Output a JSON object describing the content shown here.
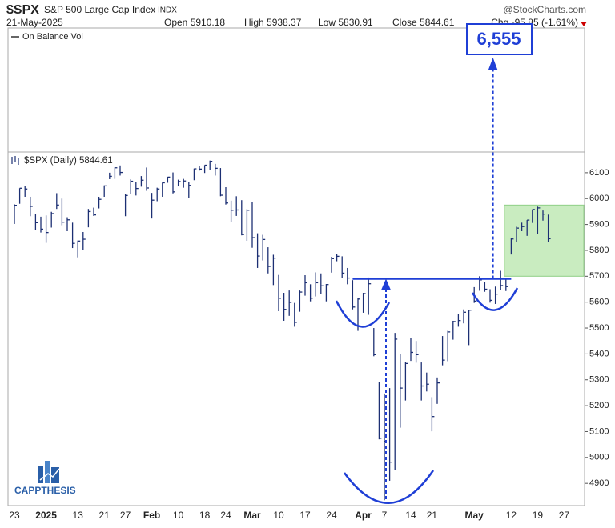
{
  "chart_data": {
    "type": "hlc",
    "symbol": "$SPX",
    "name": "S&P 500 Large Cap Index",
    "exchange": "INDX",
    "source": "@StockCharts.com",
    "date": "21-May-2025",
    "header": [
      "Open 5910.18",
      "High 5938.37",
      "Low 5830.91",
      "Close 5844.61",
      "Chg -95.85 (-1.61%)"
    ],
    "indicator": "On Balance Vol",
    "legend": "$SPX (Daily) 5844.61",
    "watermark": "CAPPTHESIS",
    "color": "#1c2f73",
    "annotation_color": "#1f3fd6",
    "zone_color": "#c9ecc0",
    "categories": [
      "23",
      null,
      null,
      null,
      null,
      null,
      "2025",
      null,
      null,
      null,
      null,
      null,
      "13",
      null,
      null,
      null,
      null,
      "21",
      null,
      null,
      null,
      "27",
      null,
      null,
      null,
      null,
      "Feb",
      null,
      null,
      null,
      null,
      "10",
      null,
      null,
      null,
      null,
      "18",
      null,
      null,
      null,
      "24",
      null,
      null,
      null,
      null,
      "Mar",
      null,
      null,
      null,
      null,
      "10",
      null,
      null,
      null,
      null,
      "17",
      null,
      null,
      null,
      null,
      "24",
      null,
      null,
      null,
      null,
      null,
      "Apr",
      null,
      null,
      null,
      "7",
      null,
      null,
      null,
      null,
      "14",
      null,
      null,
      null,
      "21",
      null,
      null,
      null,
      null,
      null,
      null,
      null,
      "May",
      null,
      null,
      null,
      null,
      null,
      null,
      "12",
      null,
      null,
      null,
      null,
      "19",
      null,
      null,
      null,
      null,
      "27"
    ],
    "high": [
      5978,
      6040,
      6049,
      6007,
      5941,
      5930,
      5935,
      5949,
      6021,
      6000,
      5928,
      5907,
      5838,
      5871,
      5960,
      5965,
      6007,
      6051,
      6100,
      6121,
      6128,
      6017,
      6074,
      6063,
      6087,
      6120,
      6022,
      6042,
      6062,
      6084,
      6101,
      6073,
      6076,
      6064,
      6116,
      6127,
      6129,
      6147,
      6134,
      6118,
      6044,
      5992,
      6009,
      5994,
      5959,
      5987,
      5866,
      5860,
      5812,
      5783,
      5705,
      5636,
      5645,
      5597,
      5645,
      5704,
      5669,
      5715,
      5711,
      5670,
      5775,
      5787,
      5777,
      5732,
      5685,
      5615,
      5636,
      5695,
      5500,
      5293,
      5247,
      5268,
      5481,
      5400,
      5369,
      5460,
      5450,
      5367,
      5328,
      5233,
      5309,
      5469,
      5489,
      5528,
      5553,
      5572,
      5571,
      5658,
      5700,
      5677,
      5650,
      5660,
      5721,
      5692,
      5847,
      5891,
      5907,
      5917,
      5958,
      5969,
      5954,
      5938,
      null,
      null,
      null
    ],
    "low": [
      5902,
      5980,
      6007,
      5932,
      5879,
      5869,
      5829,
      5888,
      5960,
      5897,
      5874,
      5809,
      5773,
      5802,
      5889,
      5933,
      5962,
      6007,
      6075,
      6076,
      6089,
      5932,
      6019,
      6012,
      6046,
      6030,
      5923,
      5990,
      6007,
      6061,
      6020,
      6047,
      6042,
      6003,
      6071,
      6108,
      6099,
      6111,
      6089,
      6009,
      5977,
      5908,
      5933,
      5858,
      5837,
      5810,
      5732,
      5761,
      5711,
      5666,
      5565,
      5528,
      5547,
      5505,
      5563,
      5625,
      5603,
      5622,
      5632,
      5603,
      5714,
      5758,
      5693,
      5669,
      5572,
      5489,
      5559,
      5551,
      5391,
      5070,
      4835,
      4910,
      4950,
      5115,
      5220,
      5373,
      5366,
      5220,
      5255,
      5101,
      5207,
      5356,
      5372,
      5455,
      5505,
      5518,
      5434,
      5597,
      5644,
      5640,
      5598,
      5593,
      5648,
      5643,
      5784,
      5831,
      5874,
      5856,
      5906,
      5862,
      5915,
      5831,
      null,
      null,
      null
    ],
    "close": [
      5974,
      6040,
      6037,
      5970,
      5907,
      5882,
      5869,
      5942,
      5975,
      5909,
      5918,
      5827,
      5836,
      5843,
      5950,
      5937,
      5997,
      6049,
      6086,
      6119,
      6101,
      6012,
      6067,
      6039,
      6071,
      6041,
      5994,
      6037,
      6061,
      6083,
      6026,
      6066,
      6068,
      6051,
      6115,
      6114,
      6129,
      6144,
      6117,
      6013,
      5983,
      5955,
      5956,
      5861,
      5955,
      5849,
      5778,
      5842,
      5738,
      5770,
      5615,
      5572,
      5599,
      5522,
      5639,
      5675,
      5615,
      5675,
      5663,
      5668,
      5768,
      5777,
      5712,
      5693,
      5581,
      5612,
      5633,
      5671,
      5397,
      5074,
      5062,
      4982,
      5457,
      5268,
      5363,
      5406,
      5397,
      5276,
      5283,
      5158,
      5288,
      5376,
      5485,
      5525,
      5529,
      5561,
      5569,
      5604,
      5686,
      5650,
      5607,
      5631,
      5664,
      5660,
      5844,
      5886,
      5892,
      5917,
      5958,
      5964,
      5940,
      5845,
      null,
      null,
      null
    ],
    "ylim": [
      4814,
      6180
    ],
    "yticks": [
      4900,
      5000,
      5100,
      5200,
      5300,
      5400,
      5500,
      5600,
      5700,
      5800,
      5900,
      6000,
      6100
    ],
    "neckline": 5690,
    "target": {
      "value": 6555,
      "label": "6,555"
    },
    "target_zone": [
      5700,
      5975
    ]
  }
}
